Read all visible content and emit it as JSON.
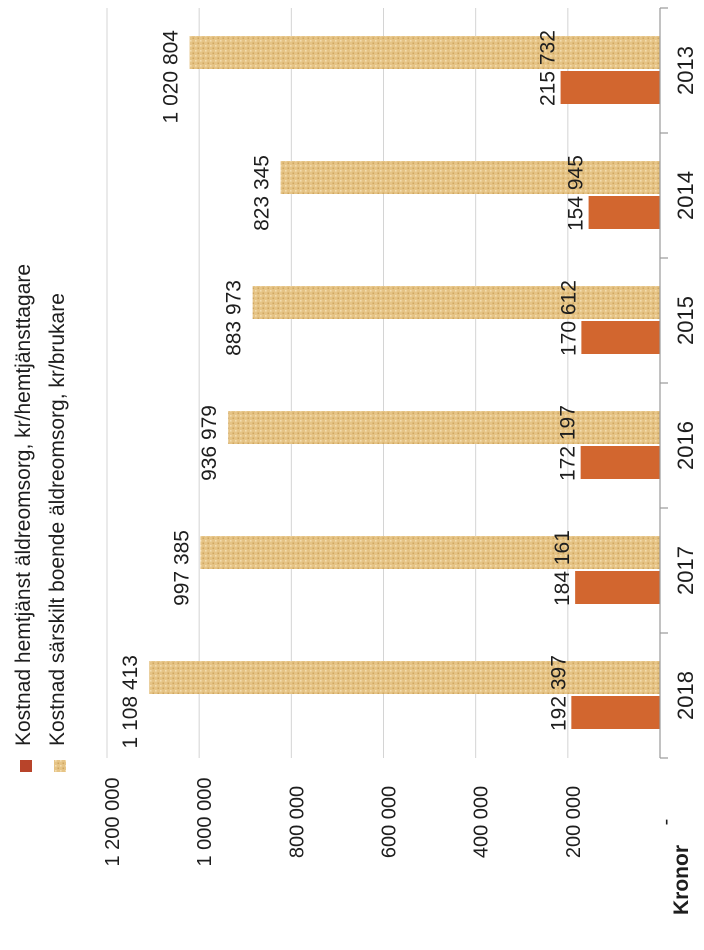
{
  "chart_data": {
    "type": "bar",
    "orientation": "horizontal",
    "categories": [
      "2013",
      "2014",
      "2015",
      "2016",
      "2017",
      "2018"
    ],
    "series": [
      {
        "name": "Kostnad hemtjänst äldreomsorg, kr/hemtjänsttagare",
        "values": [
          215732,
          154945,
          170612,
          172197,
          184161,
          192397
        ],
        "value_labels": [
          "215 732",
          "154 945",
          "170 612",
          "172 197",
          "184 161",
          "192 397"
        ],
        "color": "#d2662f"
      },
      {
        "name": "Kostnad särskilt boende äldreomsorg, kr/brukare",
        "values": [
          1020804,
          823345,
          883973,
          936979,
          997385,
          1108413
        ],
        "value_labels": [
          "1 020 804",
          "823 345",
          "883 973",
          "936 979",
          "997 385",
          "1 108 413"
        ],
        "color": "#e6c486"
      }
    ],
    "value_axis": {
      "label": "Kronor",
      "range": [
        0,
        1200000
      ],
      "ticks": [
        0,
        200000,
        400000,
        600000,
        800000,
        1000000,
        1200000
      ],
      "tick_labels": [
        "-",
        "200 000",
        "400 000",
        "600 000",
        "800 000",
        "1 000 000",
        "1 200 000"
      ]
    },
    "grid": true,
    "legend": "top",
    "rotation": "image rotated 90° clockwise"
  }
}
